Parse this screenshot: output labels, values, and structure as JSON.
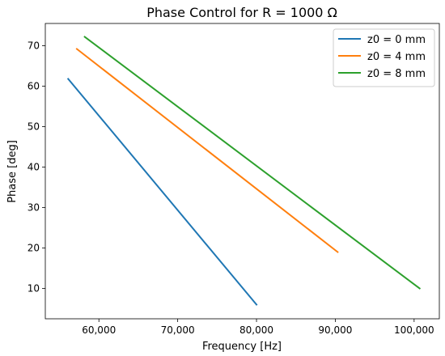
{
  "chart_data": {
    "type": "line",
    "title": "Phase Control for R = 1000 Ω",
    "xlabel": "Frequency [Hz]",
    "ylabel": "Phase [deg]",
    "xlim": [
      53200,
      103200
    ],
    "ylim": [
      2.5,
      75.5
    ],
    "xticks": [
      60000,
      70000,
      80000,
      90000,
      100000
    ],
    "xtick_labels": [
      "60,000",
      "70,000",
      "80,000",
      "90,000",
      "100,000"
    ],
    "yticks": [
      10,
      20,
      30,
      40,
      50,
      60,
      70
    ],
    "ytick_labels": [
      "10",
      "20",
      "30",
      "40",
      "50",
      "60",
      "70"
    ],
    "grid": false,
    "legend_position": "top-right",
    "series": [
      {
        "name": "z0 = 0 mm",
        "color": "#1f77b4",
        "x": [
          56100,
          80000
        ],
        "y": [
          61.8,
          6.0
        ]
      },
      {
        "name": "z0 = 4 mm",
        "color": "#ff7f0e",
        "x": [
          57200,
          90300
        ],
        "y": [
          69.2,
          19.0
        ]
      },
      {
        "name": "z0 = 8 mm",
        "color": "#2ca02c",
        "x": [
          58200,
          100700
        ],
        "y": [
          72.2,
          10.0
        ]
      }
    ]
  }
}
